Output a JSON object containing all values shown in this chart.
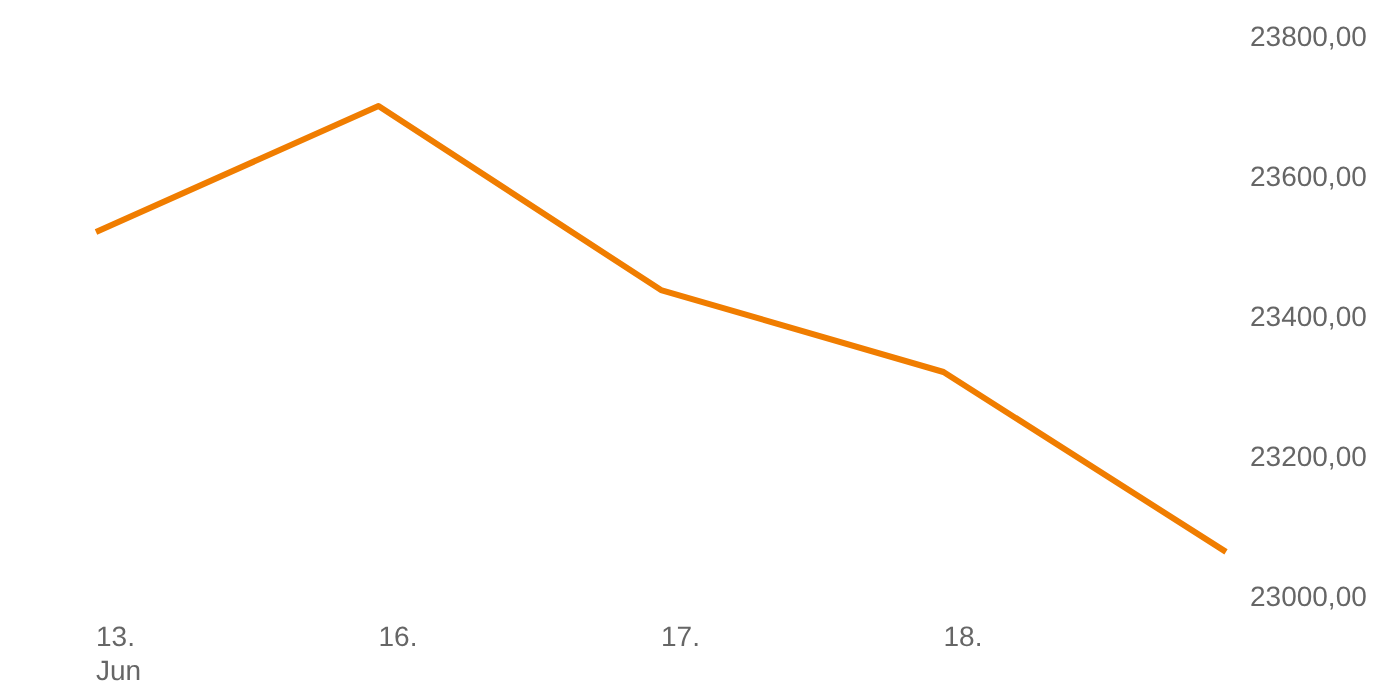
{
  "chart_data": {
    "type": "line",
    "categories": [
      "13.\nJun",
      "16.",
      "17.",
      "18.",
      null
    ],
    "series": [
      {
        "color": "#f07d00",
        "values": [
          23520,
          23700,
          23437,
          23320,
          23063
        ]
      }
    ],
    "ylim": [
      23000,
      23800
    ],
    "yticks": [
      {
        "value": 23000,
        "label": "23000,00"
      },
      {
        "value": 23200,
        "label": "23200,00"
      },
      {
        "value": 23400,
        "label": "23400,00"
      },
      {
        "value": 23600,
        "label": "23600,00"
      },
      {
        "value": 23800,
        "label": "23800,00"
      }
    ],
    "grid": false,
    "marker": "none",
    "line_style": "solid"
  }
}
